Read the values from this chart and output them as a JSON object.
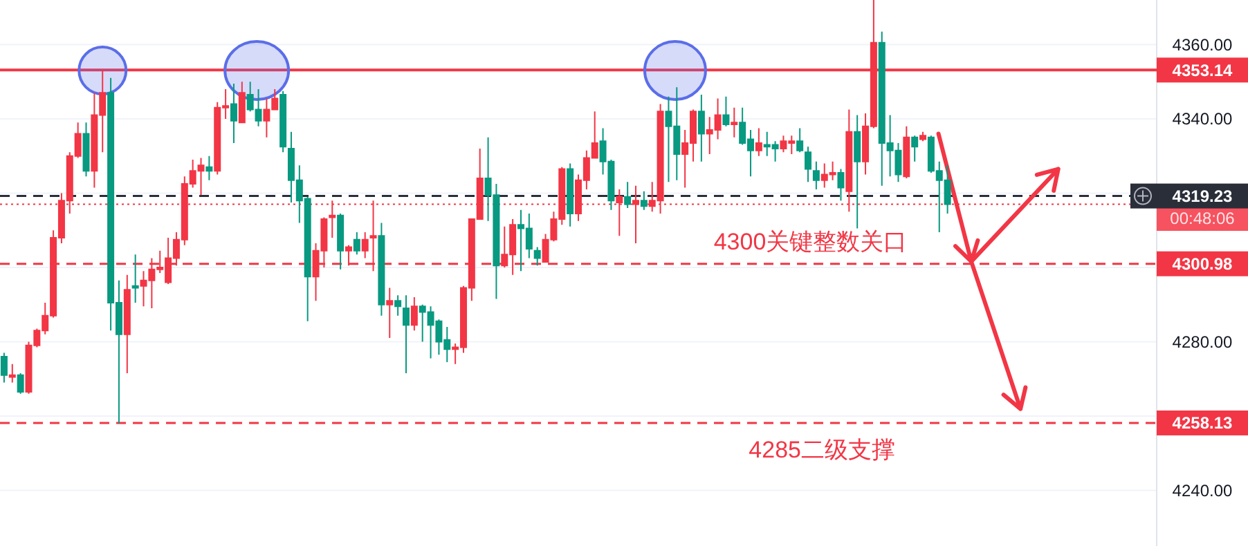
{
  "chart_data": {
    "type": "candlestick",
    "categories": [
      null,
      null,
      null,
      null,
      null,
      null,
      null,
      null,
      null,
      null,
      null,
      null,
      null,
      null,
      null,
      null,
      null,
      null,
      null,
      null,
      null,
      null,
      null,
      null,
      null,
      null,
      null,
      null,
      null,
      null,
      null,
      null,
      null,
      null,
      null,
      null,
      null,
      null,
      null,
      null,
      null,
      null,
      null,
      null,
      null,
      null,
      null,
      null,
      null,
      null,
      null,
      null,
      null,
      null,
      null,
      null,
      null,
      null,
      null,
      null,
      null,
      null,
      null,
      null,
      null,
      null,
      null,
      null,
      null,
      null,
      null,
      null,
      null,
      null,
      null,
      null,
      null,
      null,
      null,
      null,
      null,
      null,
      null,
      null,
      null,
      null,
      null,
      null,
      null,
      null,
      null,
      null,
      null,
      null,
      null,
      null,
      null,
      null,
      null,
      null,
      null,
      null,
      null,
      null,
      null,
      null,
      null,
      null,
      null,
      null,
      null,
      null,
      null,
      null,
      null,
      null,
      null,
      null,
      null,
      null,
      null,
      null,
      null,
      null,
      null,
      null,
      null,
      null,
      null,
      null,
      null,
      null,
      null,
      null,
      null,
      null,
      null,
      null,
      null,
      null,
      null
    ],
    "ohlc": [
      [
        4276,
        4277,
        4269,
        4271
      ],
      [
        4270.5,
        4274,
        4269,
        4271
      ],
      [
        4271,
        4271.5,
        4266,
        4266.5
      ],
      [
        4266.5,
        4280,
        4266,
        4279
      ],
      [
        4279,
        4283.5,
        4278.5,
        4283
      ],
      [
        4283,
        4290.5,
        4282,
        4287
      ],
      [
        4287,
        4310,
        4286.5,
        4308
      ],
      [
        4308,
        4320,
        4306.5,
        4318
      ],
      [
        4318,
        4331,
        4314.5,
        4330
      ],
      [
        4330,
        4339,
        4329.5,
        4336
      ],
      [
        4336,
        4339,
        4324.5,
        4326
      ],
      [
        4326,
        4347,
        4321.5,
        4341
      ],
      [
        4341,
        4353,
        4331,
        4347
      ],
      [
        4347,
        4351,
        4283,
        4290.5
      ],
      [
        4290.5,
        4296.5,
        4258,
        4282
      ],
      [
        4282,
        4298,
        4271.5,
        4294
      ],
      [
        4295,
        4303.5,
        4290.5,
        4294.5
      ],
      [
        4295,
        4299,
        4289.5,
        4296.5
      ],
      [
        4296.5,
        4302.5,
        4289,
        4299.5
      ],
      [
        4299.5,
        4304.5,
        4298.5,
        4300
      ],
      [
        4296,
        4308,
        4295.5,
        4302.5
      ],
      [
        4302.5,
        4309.5,
        4300.5,
        4307.5
      ],
      [
        4307.5,
        4324.5,
        4306,
        4322.5
      ],
      [
        4322.5,
        4329,
        4321.5,
        4326
      ],
      [
        4326,
        4329.5,
        4319.5,
        4327.5
      ],
      [
        4327,
        4330,
        4323.5,
        4326
      ],
      [
        4326,
        4344.5,
        4325,
        4343
      ],
      [
        4343,
        4348,
        4340,
        4343.5
      ],
      [
        4344,
        4349.5,
        4333.5,
        4339.5
      ],
      [
        4339,
        4350,
        4339,
        4347
      ],
      [
        4346.5,
        4350,
        4342,
        4342.5
      ],
      [
        4342.5,
        4348,
        4338,
        4339.5
      ],
      [
        4339.5,
        4345.5,
        4335,
        4342.5
      ],
      [
        4342.5,
        4348,
        4342.5,
        4345.5
      ],
      [
        4346.5,
        4347.5,
        4331,
        4332.5
      ],
      [
        4332,
        4336.5,
        4317.5,
        4323.5
      ],
      [
        4323.5,
        4327.5,
        4312,
        4318
      ],
      [
        4318.5,
        4319,
        4285.5,
        4297.5
      ],
      [
        4297.5,
        4306.5,
        4291,
        4304.5
      ],
      [
        4304.5,
        4313.5,
        4300,
        4313
      ],
      [
        4313.5,
        4318,
        4308,
        4314
      ],
      [
        4314,
        4314.5,
        4299.5,
        4304.5
      ],
      [
        4304.5,
        4306,
        4300.5,
        4305.5
      ],
      [
        4307.5,
        4309.5,
        4303.5,
        4304.5
      ],
      [
        4304.5,
        4309.5,
        4302.5,
        4307.5
      ],
      [
        4308,
        4318,
        4299,
        4308.5
      ],
      [
        4308.5,
        4312,
        4287,
        4290
      ],
      [
        4290,
        4294.5,
        4281,
        4291
      ],
      [
        4291,
        4292.5,
        4287,
        4289.5
      ],
      [
        4289,
        4292.5,
        4271.5,
        4284.5
      ],
      [
        4284.5,
        4292,
        4283,
        4289.5
      ],
      [
        4289.5,
        4290,
        4280,
        4288
      ],
      [
        4288,
        4289.5,
        4275.5,
        4284.5
      ],
      [
        4285.5,
        4286,
        4276.5,
        4280
      ],
      [
        4280.5,
        4284,
        4274.5,
        4278
      ],
      [
        4278,
        4279.5,
        4274,
        4278.5
      ],
      [
        4278.5,
        4295,
        4277,
        4294.5
      ],
      [
        4294.5,
        4313,
        4291,
        4313
      ],
      [
        4313,
        4332,
        4313,
        4324
      ],
      [
        4324,
        4335,
        4312.5,
        4319.5
      ],
      [
        4319.5,
        4322.5,
        4291.5,
        4300.5
      ],
      [
        4300.5,
        4311,
        4300,
        4303.5
      ],
      [
        4303.5,
        4313,
        4298,
        4311.5
      ],
      [
        4311.5,
        4315.5,
        4299,
        4310.5
      ],
      [
        4310.5,
        4314.5,
        4302.5,
        4305
      ],
      [
        4304.5,
        4305.5,
        4300.5,
        4302.5
      ],
      [
        4301.5,
        4309,
        4301.5,
        4307.5
      ],
      [
        4307.5,
        4315,
        4307,
        4313
      ],
      [
        4313,
        4327,
        4311.5,
        4326.5
      ],
      [
        4326.5,
        4328,
        4311,
        4314.5
      ],
      [
        4314.5,
        4325,
        4312.5,
        4323.5
      ],
      [
        4323.5,
        4331.5,
        4321,
        4329.5
      ],
      [
        4329.5,
        4342,
        4329.5,
        4333.5
      ],
      [
        4334,
        4337.5,
        4325,
        4328.5
      ],
      [
        4328.5,
        4329,
        4315.5,
        4318
      ],
      [
        4317.5,
        4321,
        4308.5,
        4319
      ],
      [
        4319,
        4323,
        4316,
        4317
      ],
      [
        4317,
        4322,
        4306.5,
        4318
      ],
      [
        4318,
        4320.5,
        4315.5,
        4316.5
      ],
      [
        4316.5,
        4323,
        4315,
        4318
      ],
      [
        4318,
        4344,
        4314.5,
        4342
      ],
      [
        4342,
        4346,
        4323,
        4338
      ],
      [
        4338,
        4348.5,
        4323.5,
        4330.5
      ],
      [
        4330.5,
        4337,
        4321.5,
        4333.5
      ],
      [
        4333.5,
        4342.5,
        4328.5,
        4342
      ],
      [
        4342,
        4346.5,
        4328.5,
        4336
      ],
      [
        4336,
        4340.5,
        4330.5,
        4337
      ],
      [
        4337,
        4345.5,
        4334.5,
        4341
      ],
      [
        4341,
        4346,
        4338,
        4338.5
      ],
      [
        4338.5,
        4343,
        4335,
        4339
      ],
      [
        4339,
        4343,
        4333,
        4333.5
      ],
      [
        4334.5,
        4337,
        4324.5,
        4331.5
      ],
      [
        4331.5,
        4337.5,
        4330,
        4333.5
      ],
      [
        4333,
        4336.5,
        4330,
        4332.5
      ],
      [
        4333,
        4334,
        4328.5,
        4332
      ],
      [
        4332,
        4335.5,
        4331,
        4334
      ],
      [
        4333.5,
        4335.5,
        4330.5,
        4334
      ],
      [
        4334,
        4337.5,
        4331,
        4331.5
      ],
      [
        4331,
        4332.5,
        4323,
        4326.5
      ],
      [
        4326,
        4328.5,
        4321,
        4323.5
      ],
      [
        4323.5,
        4328,
        4321.5,
        4325
      ],
      [
        4325,
        4328.5,
        4323.5,
        4325.5
      ],
      [
        4325.5,
        4326.5,
        4318,
        4321.5
      ],
      [
        4320.5,
        4342.5,
        4315,
        4336.5
      ],
      [
        4336.5,
        4341,
        4310.5,
        4328.5
      ],
      [
        4328.5,
        4341.5,
        4325,
        4338
      ],
      [
        4338,
        4372,
        4337.5,
        4360.5
      ],
      [
        4360.5,
        4363.5,
        4322,
        4333.5
      ],
      [
        4333.5,
        4341,
        4324.5,
        4331.5
      ],
      [
        4331.5,
        4333.5,
        4323,
        4325
      ],
      [
        4324.5,
        4338,
        4324,
        4335
      ],
      [
        4335,
        4335.5,
        4328.5,
        4332.5
      ],
      [
        4334.5,
        4336.5,
        4334,
        4335.5
      ],
      [
        4335,
        4335.5,
        4325.5,
        4326
      ],
      [
        4326,
        4328.5,
        4309.5,
        4323.5
      ],
      [
        4323.5,
        4327.5,
        4314.5,
        4317
      ],
      null,
      null,
      null,
      null,
      null,
      null,
      null,
      null,
      null,
      null,
      null,
      null,
      null,
      null,
      null,
      null,
      null,
      null,
      null,
      null,
      null,
      null,
      null,
      null,
      null
    ],
    "colors": [
      "#089981",
      "#f23645",
      "#089981",
      "#f23645",
      "#f23645",
      "#f23645",
      "#f23645",
      "#f23645",
      "#f23645",
      "#f23645",
      "#089981",
      "#f23645",
      "#f23645",
      "#089981",
      "#089981",
      "#f23645",
      "#089981",
      "#f23645",
      "#f23645",
      "#f23645",
      "#f23645",
      "#f23645",
      "#f23645",
      "#f23645",
      "#f23645",
      "#089981",
      "#f23645",
      "#f23645",
      "#089981",
      "#f23645",
      "#089981",
      "#089981",
      "#f23645",
      "#f23645",
      "#089981",
      "#089981",
      "#089981",
      "#089981",
      "#f23645",
      "#f23645",
      "#f23645",
      "#089981",
      "#f23645",
      "#089981",
      "#f23645",
      "#f23645",
      "#089981",
      "#f23645",
      "#089981",
      "#089981",
      "#f23645",
      "#089981",
      "#089981",
      "#089981",
      "#089981",
      "#f23645",
      "#f23645",
      "#f23645",
      "#f23645",
      "#089981",
      "#089981",
      "#f23645",
      "#f23645",
      "#089981",
      "#089981",
      "#089981",
      "#f23645",
      "#f23645",
      "#f23645",
      "#089981",
      "#f23645",
      "#f23645",
      "#f23645",
      "#089981",
      "#089981",
      "#f23645",
      "#089981",
      "#f23645",
      "#089981",
      "#f23645",
      "#f23645",
      "#089981",
      "#089981",
      "#f23645",
      "#f23645",
      "#089981",
      "#f23645",
      "#f23645",
      "#089981",
      "#f23645",
      "#089981",
      "#089981",
      "#f23645",
      "#089981",
      "#089981",
      "#f23645",
      "#f23645",
      "#089981",
      "#089981",
      "#089981",
      "#f23645",
      "#f23645",
      "#089981",
      "#f23645",
      "#089981",
      "#f23645",
      "#f23645",
      "#089981",
      "#089981",
      "#089981",
      "#f23645",
      "#089981",
      "#f23645",
      "#089981",
      "#089981",
      "#089981",
      null,
      null,
      null,
      null,
      null,
      null,
      null,
      null,
      null,
      null,
      null,
      null,
      null,
      null,
      null,
      null,
      null,
      null,
      null,
      null,
      null,
      null,
      null,
      null,
      null
    ],
    "ylim": [
      4225,
      4372
    ],
    "yticks": [
      {
        "value": 4240,
        "label": "4240.00"
      },
      {
        "value": 4260,
        "label": null
      },
      {
        "value": 4280,
        "label": "4280.00"
      },
      {
        "value": 4300,
        "label": null
      },
      {
        "value": 4320,
        "label": null
      },
      {
        "value": 4340,
        "label": "4340.00"
      },
      {
        "value": 4360,
        "label": "4360.00"
      }
    ],
    "grid": "y",
    "tick_labels": "y",
    "ref_lines": [
      {
        "axis": "y",
        "value": 4353.14,
        "label": "4353.14",
        "color": "#f23645",
        "line_style": "solid"
      },
      {
        "axis": "y",
        "value": 4300.98,
        "label": "4300.98",
        "color": "#f23645",
        "line_style": "dashed"
      },
      {
        "axis": "y",
        "value": 4258.13,
        "label": "4258.13",
        "color": "#f23645",
        "line_style": "dashed"
      },
      {
        "axis": "y",
        "value": 4319.23,
        "label": "4319.23",
        "color": "#2a2e39",
        "line_style": "dashed"
      },
      {
        "axis": "y",
        "value": 4317,
        "color": "#f23645",
        "line_style": "dotted"
      }
    ],
    "annotations": [
      "4300关键整数关口",
      "4285二级支撑",
      "00:48:06"
    ]
  }
}
